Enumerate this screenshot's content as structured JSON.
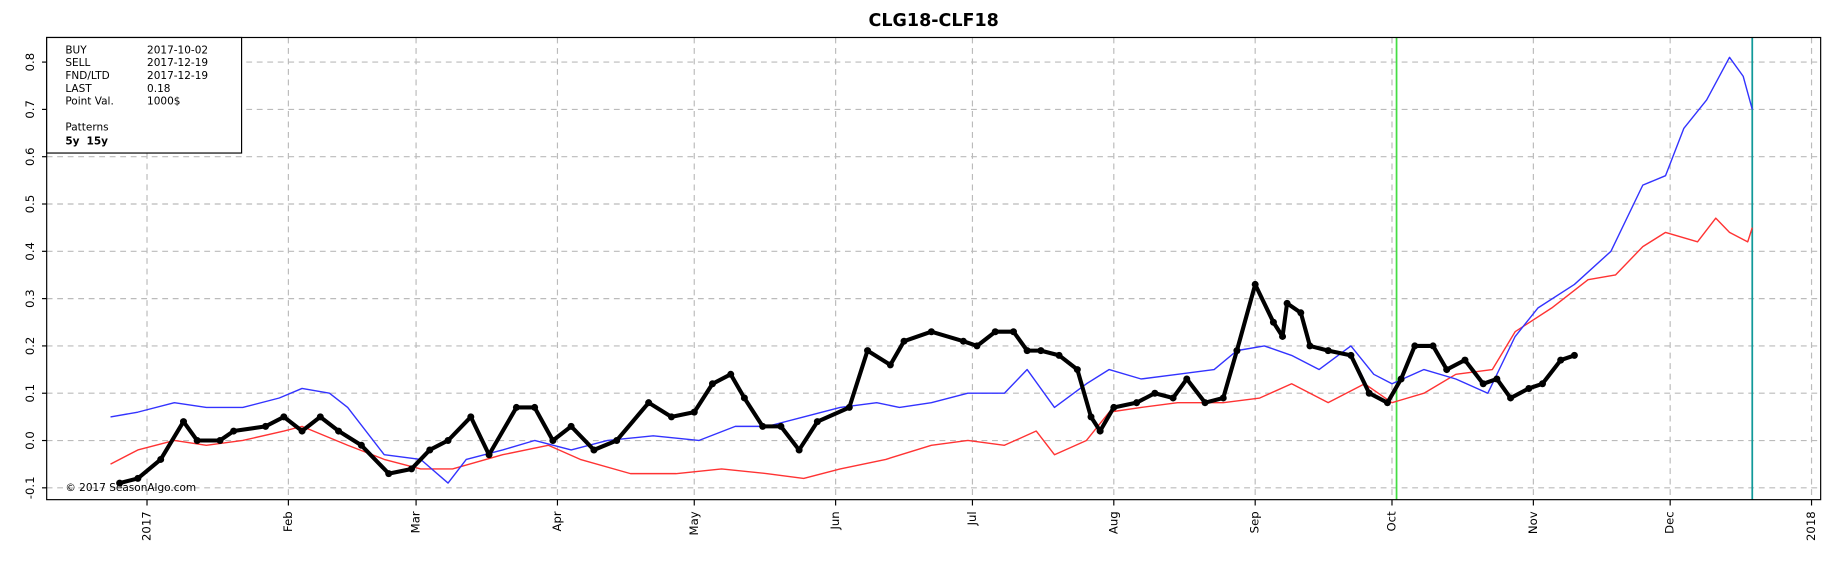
{
  "chart_data": {
    "type": "line",
    "title": "CLG18-CLF18",
    "xlim": [
      -22,
      367
    ],
    "ylim": [
      -0.125,
      0.852
    ],
    "xticks": [
      {
        "value": 0,
        "label": "2017"
      },
      {
        "value": 31,
        "label": "Feb"
      },
      {
        "value": 59,
        "label": "Mar"
      },
      {
        "value": 90,
        "label": "Apr"
      },
      {
        "value": 120,
        "label": "May"
      },
      {
        "value": 151,
        "label": "Jun"
      },
      {
        "value": 181,
        "label": "Jul"
      },
      {
        "value": 212,
        "label": "Aug"
      },
      {
        "value": 243,
        "label": "Sep"
      },
      {
        "value": 273,
        "label": "Oct"
      },
      {
        "value": 304,
        "label": "Nov"
      },
      {
        "value": 334,
        "label": "Dec"
      },
      {
        "value": 365,
        "label": "2018"
      }
    ],
    "yticks": [
      -0.1,
      {
        "value": 0,
        "label": "0.0"
      },
      0.1,
      0.2,
      0.3,
      0.4,
      0.5,
      0.6,
      0.7,
      0.8
    ],
    "grid": true,
    "info": [
      {
        "label": "BUY",
        "value": "2017-10-02",
        "color": "#33ee33"
      },
      {
        "label": "SELL",
        "value": "2017-12-19",
        "color": "#ff3333"
      },
      {
        "label": "FND/LTD",
        "value": "2017-12-19",
        "color": "#119999"
      },
      {
        "label": "LAST",
        "value": "0.18",
        "color": "#000000"
      },
      {
        "label": "Point Val.",
        "value": "1000$",
        "color": "#000000"
      }
    ],
    "patterns_label": "Patterns",
    "watermark": "© 2017 SeasonAlgo.com",
    "vlines": [
      {
        "x": 274,
        "color": "#44dd44"
      },
      {
        "x": 352,
        "color": "#119999"
      }
    ],
    "series": [
      {
        "name": "5y",
        "color": "#ff3333",
        "markers": false,
        "x": [
          -8,
          -2,
          6,
          13,
          21,
          30,
          34,
          44,
          52,
          60,
          67,
          78,
          88,
          95,
          106,
          116,
          126,
          136,
          144,
          152,
          162,
          172,
          180,
          188,
          195,
          199,
          206,
          211,
          218,
          226,
          236,
          244,
          251,
          259,
          267,
          273,
          280,
          287,
          295,
          300,
          308,
          316,
          322,
          328,
          333,
          340,
          344,
          347,
          351,
          352
        ],
        "values": [
          -0.05,
          -0.02,
          0.0,
          -0.01,
          0.0,
          0.02,
          0.03,
          -0.01,
          -0.04,
          -0.06,
          -0.06,
          -0.03,
          -0.01,
          -0.04,
          -0.07,
          -0.07,
          -0.06,
          -0.07,
          -0.08,
          -0.06,
          -0.04,
          -0.01,
          0.0,
          -0.01,
          0.02,
          -0.03,
          0.0,
          0.06,
          0.07,
          0.08,
          0.08,
          0.09,
          0.12,
          0.08,
          0.12,
          0.08,
          0.1,
          0.14,
          0.15,
          0.23,
          0.28,
          0.34,
          0.35,
          0.41,
          0.44,
          0.42,
          0.47,
          0.44,
          0.42,
          0.45
        ]
      },
      {
        "name": "15y",
        "color": "#3333ff",
        "markers": false,
        "x": [
          -8,
          -2,
          6,
          13,
          21,
          29,
          34,
          40,
          44,
          52,
          60,
          66,
          70,
          78,
          85,
          93,
          101,
          111,
          121,
          129,
          136,
          144,
          152,
          160,
          165,
          172,
          180,
          188,
          193,
          199,
          206,
          211,
          218,
          226,
          234,
          239,
          245,
          251,
          257,
          264,
          269,
          273,
          280,
          287,
          294,
          300,
          305,
          313,
          321,
          328,
          333,
          337,
          342,
          347,
          350,
          352
        ],
        "values": [
          0.05,
          0.06,
          0.08,
          0.07,
          0.07,
          0.09,
          0.11,
          0.1,
          0.07,
          -0.03,
          -0.04,
          -0.09,
          -0.04,
          -0.02,
          0.0,
          -0.02,
          0.0,
          0.01,
          0.0,
          0.03,
          0.03,
          0.05,
          0.07,
          0.08,
          0.07,
          0.08,
          0.1,
          0.1,
          0.15,
          0.07,
          0.12,
          0.15,
          0.13,
          0.14,
          0.15,
          0.19,
          0.2,
          0.18,
          0.15,
          0.2,
          0.14,
          0.12,
          0.15,
          0.13,
          0.1,
          0.22,
          0.28,
          0.33,
          0.4,
          0.54,
          0.56,
          0.66,
          0.72,
          0.81,
          0.77,
          0.7
        ]
      },
      {
        "color": "#000000",
        "markers": true,
        "x": [
          -6,
          -2,
          3,
          8,
          11,
          16,
          19,
          26,
          30,
          34,
          38,
          42,
          47,
          53,
          58,
          62,
          66,
          71,
          75,
          81,
          85,
          89,
          93,
          98,
          103,
          110,
          115,
          120,
          124,
          128,
          131,
          135,
          139,
          143,
          147,
          154,
          158,
          163,
          166,
          172,
          179,
          182,
          186,
          190,
          193,
          196,
          200,
          204,
          207,
          209,
          212,
          217,
          221,
          225,
          228,
          232,
          236,
          239,
          243,
          247,
          249,
          250,
          253,
          255,
          259,
          264,
          268,
          272,
          275,
          278,
          282,
          285,
          289,
          293,
          296,
          299,
          303,
          306,
          310,
          313
        ],
        "values": [
          -0.09,
          -0.08,
          -0.04,
          0.04,
          0.0,
          0.0,
          0.02,
          0.03,
          0.05,
          0.02,
          0.05,
          0.02,
          -0.01,
          -0.07,
          -0.06,
          -0.02,
          0.0,
          0.05,
          -0.03,
          0.07,
          0.07,
          0.0,
          0.03,
          -0.02,
          0.0,
          0.08,
          0.05,
          0.06,
          0.12,
          0.14,
          0.09,
          0.03,
          0.03,
          -0.02,
          0.04,
          0.07,
          0.19,
          0.16,
          0.21,
          0.23,
          0.21,
          0.2,
          0.23,
          0.23,
          0.19,
          0.19,
          0.18,
          0.15,
          0.05,
          0.02,
          0.07,
          0.08,
          0.1,
          0.09,
          0.13,
          0.08,
          0.09,
          0.19,
          0.33,
          0.25,
          0.22,
          0.29,
          0.27,
          0.2,
          0.19,
          0.18,
          0.1,
          0.08,
          0.13,
          0.2,
          0.2,
          0.15,
          0.17,
          0.12,
          0.13,
          0.09,
          0.11,
          0.12,
          0.17,
          0.18
        ]
      }
    ]
  }
}
